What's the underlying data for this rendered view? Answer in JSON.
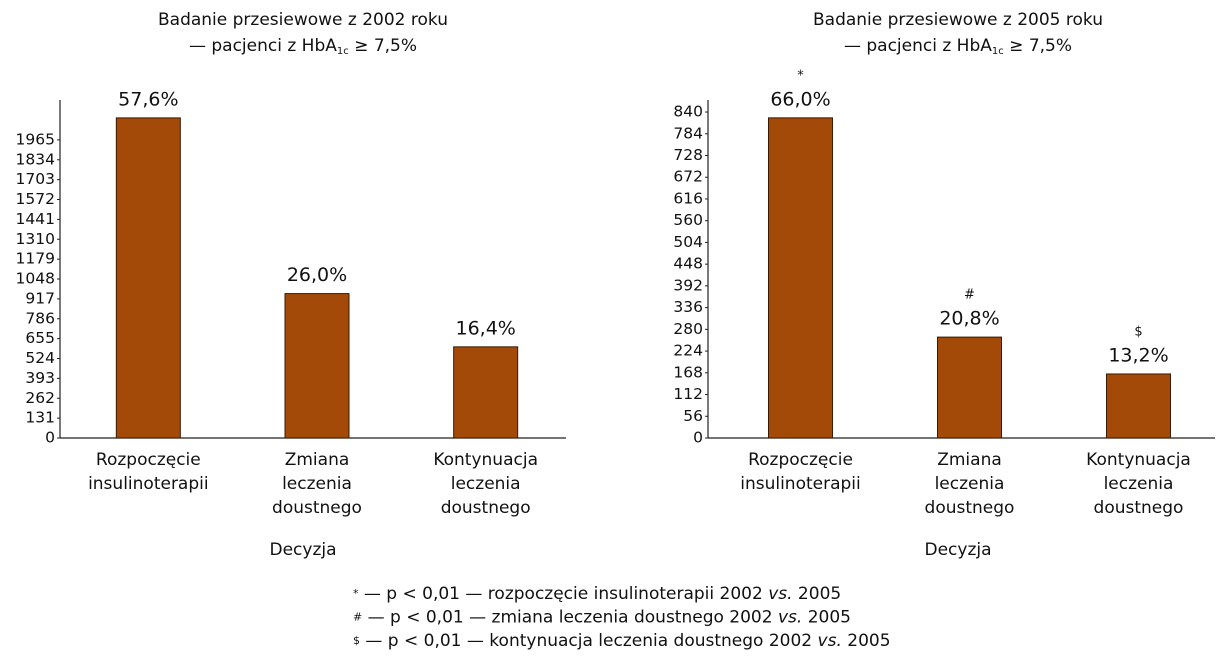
{
  "chart_data": [
    {
      "type": "bar",
      "title": "Badanie przesiewowe z 2002 roku",
      "subtitle_parts": [
        "— pacjenci z HbA",
        "1c",
        " ≥ 7,5%"
      ],
      "categories": [
        [
          "Rozpoczęcie",
          "insulinoterapii"
        ],
        [
          "Zmiana",
          "leczenia",
          "doustnego"
        ],
        [
          "Kontynuacja",
          "leczenia",
          "doustnego"
        ]
      ],
      "values": [
        2110,
        952,
        601
      ],
      "bar_labels": [
        "57,6%",
        "26,0%",
        "16,4%"
      ],
      "x_label": "Decyzja",
      "color": "#a34a09",
      "ylim": [
        0,
        2228
      ],
      "yticks": [
        0,
        131,
        262,
        393,
        524,
        655,
        786,
        917,
        1048,
        1179,
        1310,
        1441,
        1572,
        1703,
        1834,
        1965
      ]
    },
    {
      "type": "bar",
      "title": "Badanie przesiewowe z 2005 roku",
      "subtitle_parts": [
        "— pacjenci z HbA",
        "1c",
        " ≥ 7,5%"
      ],
      "categories": [
        [
          "Rozpoczęcie",
          "insulinoterapii"
        ],
        [
          "Zmiana",
          "leczenia",
          "doustnego"
        ],
        [
          "Kontynuacja",
          "leczenia",
          "doustnego"
        ]
      ],
      "values": [
        825,
        260,
        165
      ],
      "bar_labels": [
        "66,0%",
        "20,8%",
        "13,2%"
      ],
      "sig_marks": [
        "*",
        "#",
        "$"
      ],
      "x_label": "Decyzja",
      "color": "#a34a09",
      "ylim": [
        0,
        871
      ],
      "yticks": [
        0,
        56,
        112,
        168,
        224,
        280,
        336,
        392,
        448,
        504,
        560,
        616,
        672,
        728,
        784,
        840
      ]
    }
  ],
  "footnotes": [
    [
      "*",
      " — p < 0,01 — rozpoczęcie insulinoterapii 2002 ",
      "vs.",
      " 2005"
    ],
    [
      "#",
      " — p < 0,01 — zmiana leczenia doustnego 2002 ",
      "vs.",
      " 2005"
    ],
    [
      "$",
      " — p < 0,01 — kontynuacja  leczenia doustnego 2002 ",
      "vs.",
      " 2005"
    ]
  ]
}
